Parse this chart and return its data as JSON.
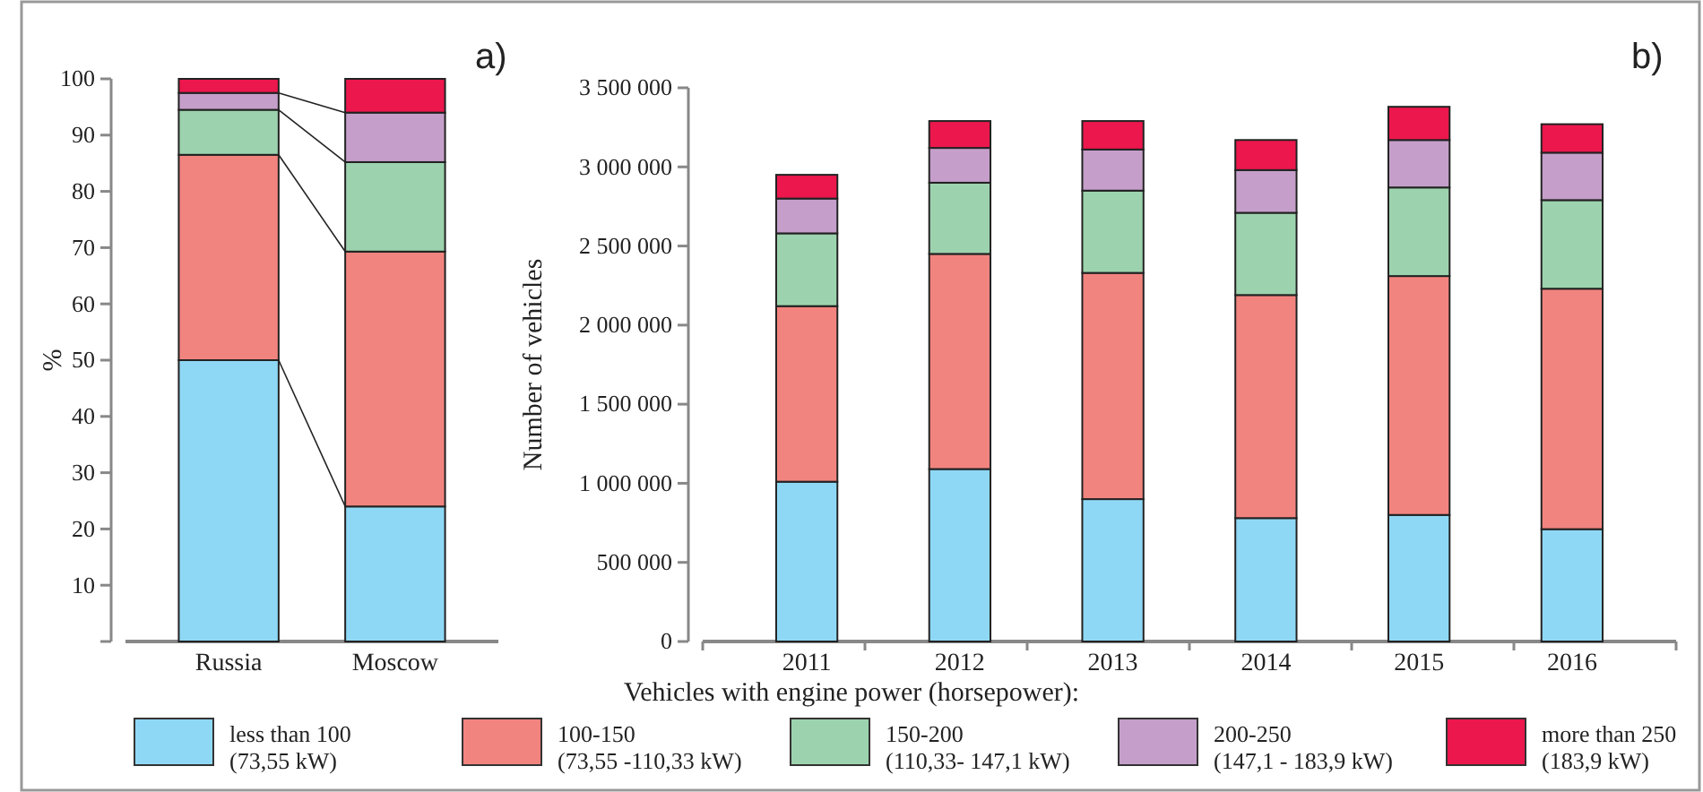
{
  "chart_data": [
    {
      "type": "bar",
      "title": "a)",
      "ylabel": "%",
      "stacked": true,
      "legend": false,
      "grid": false,
      "categories": [
        "Russia",
        "Moscow"
      ],
      "ylim": [
        0,
        100
      ],
      "yticks": [
        {
          "value": 0,
          "label": null
        },
        10,
        20,
        30,
        40,
        50,
        60,
        70,
        80,
        90,
        100
      ],
      "series": [
        {
          "color": "#8fd8f5",
          "values": [
            50,
            24
          ]
        },
        {
          "color": "#f2847f",
          "values": [
            36.5,
            45.3
          ]
        },
        {
          "color": "#9cd3ae",
          "values": [
            8,
            15.9
          ]
        },
        {
          "color": "#c59fca",
          "values": [
            3,
            8.8
          ]
        },
        {
          "color": "#ec174d",
          "values": [
            2.5,
            6
          ]
        }
      ]
    },
    {
      "type": "bar",
      "title": "b)",
      "ylabel": "Number of vehicles",
      "stacked": true,
      "legend": "bottom",
      "grid": false,
      "legend_title": "Vehicles with engine power (horsepower):",
      "categories": [
        "2011",
        "2012",
        "2013",
        "2014",
        "2015",
        "2016"
      ],
      "ylim": [
        0,
        3500000
      ],
      "yticks": [
        0,
        {
          "value": 500000,
          "label": "500 000"
        },
        {
          "value": 1000000,
          "label": "1 000 000"
        },
        {
          "value": 1500000,
          "label": "1 500 000"
        },
        {
          "value": 2000000,
          "label": "2 000 000"
        },
        {
          "value": 2500000,
          "label": "2 500 000"
        },
        {
          "value": 3000000,
          "label": "3 000 000"
        },
        {
          "value": 3500000,
          "label": "3 500 000"
        }
      ],
      "series": [
        {
          "name": "less than 100\n(73,55 kW)",
          "color": "#8fd8f5",
          "values": [
            1010000,
            1090000,
            900000,
            780000,
            800000,
            710000
          ]
        },
        {
          "name": "100-150\n(73,55 -110,33 kW)",
          "color": "#f2847f",
          "values": [
            1110000,
            1360000,
            1430000,
            1410000,
            1510000,
            1520000
          ]
        },
        {
          "name": "150-200\n(110,33- 147,1  kW)",
          "color": "#9cd3ae",
          "values": [
            460000,
            450000,
            520000,
            520000,
            560000,
            560000
          ]
        },
        {
          "name": "200-250\n(147,1 - 183,9  kW)",
          "color": "#c59fca",
          "values": [
            220000,
            220000,
            260000,
            270000,
            300000,
            300000
          ]
        },
        {
          "name": "more than  250\n(183,9 kW)",
          "color": "#ec174d",
          "values": [
            150000,
            170000,
            180000,
            190000,
            210000,
            180000
          ]
        }
      ]
    }
  ]
}
